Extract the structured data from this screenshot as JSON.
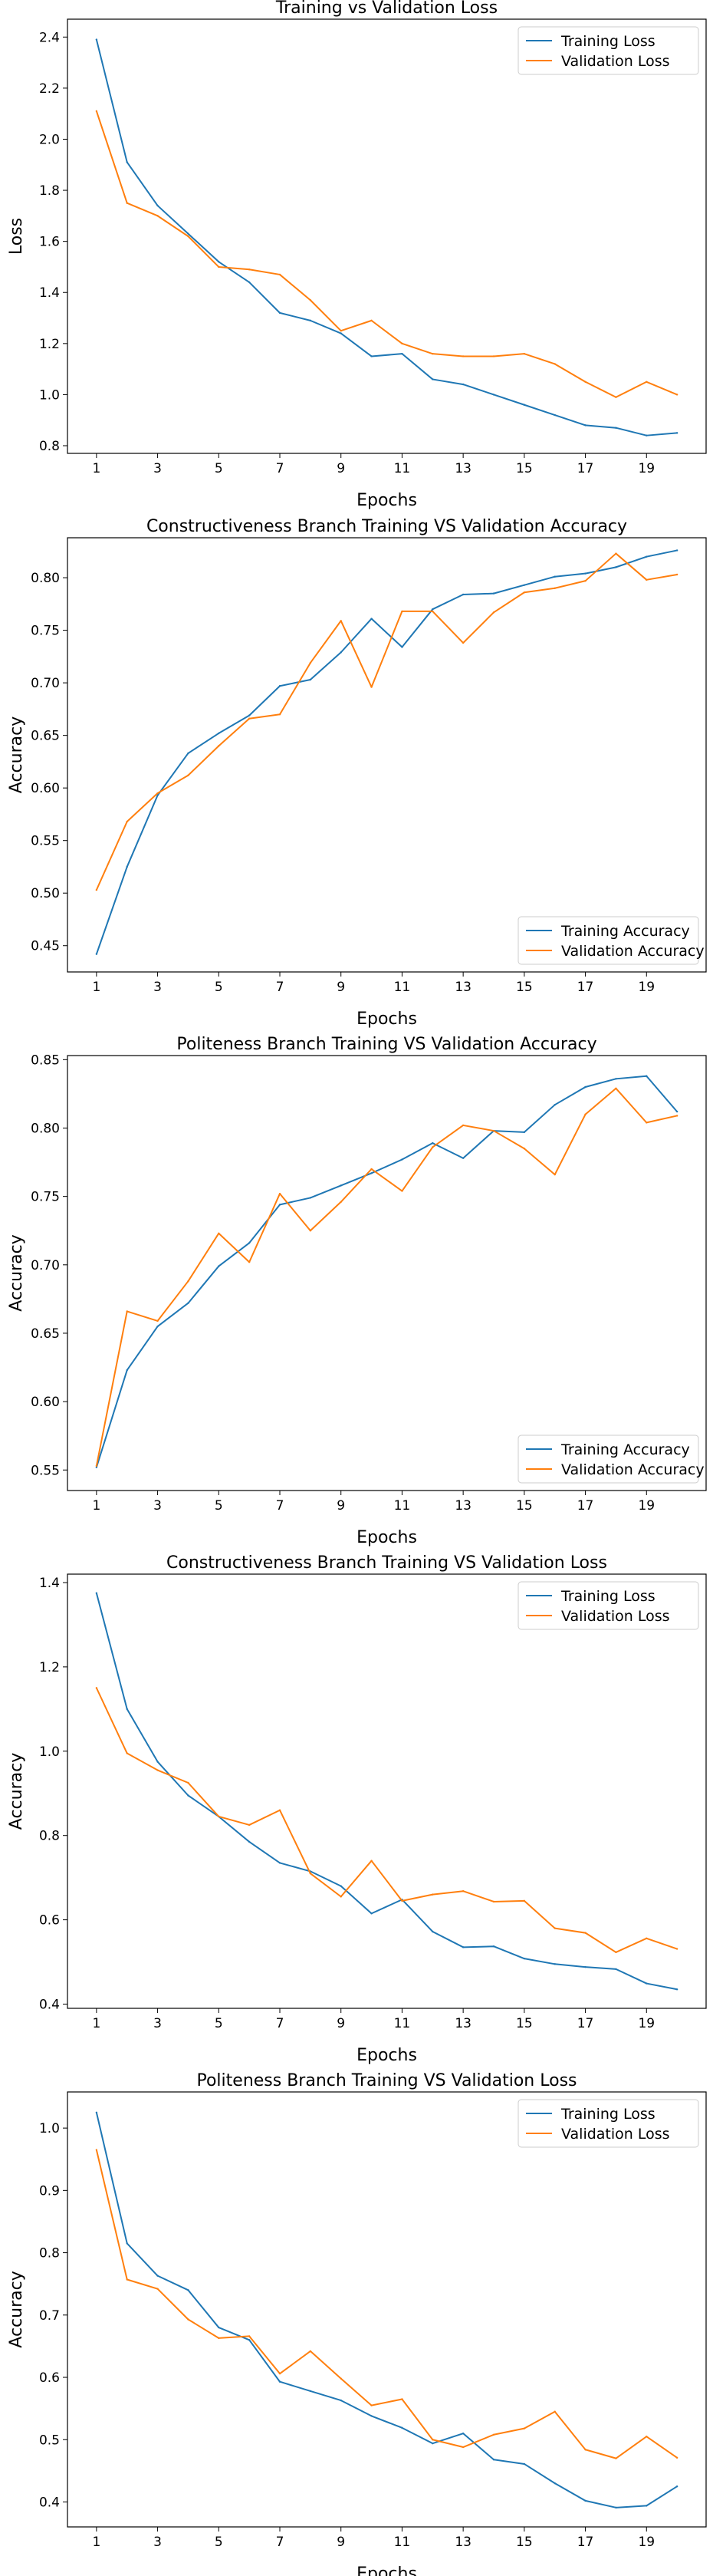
{
  "colors": {
    "training": "#1f77b4",
    "validation": "#ff7f0e",
    "axes": "#000000",
    "legend_border": "#cccccc"
  },
  "chart_data": [
    {
      "type": "line",
      "title": "Training vs Validation Loss",
      "xlabel": "Epochs",
      "ylabel": "Loss",
      "x": [
        1,
        2,
        3,
        4,
        5,
        6,
        7,
        8,
        9,
        10,
        11,
        12,
        13,
        14,
        15,
        16,
        17,
        18,
        19,
        20
      ],
      "xticks": [
        1,
        3,
        5,
        7,
        9,
        11,
        13,
        15,
        17,
        19
      ],
      "yticks": [
        0.8,
        1.0,
        1.2,
        1.4,
        1.6,
        1.8,
        2.0,
        2.2,
        2.4
      ],
      "ylim": [
        0.77,
        2.47
      ],
      "legend_position": "top-right",
      "grid": false,
      "series": [
        {
          "name": "Training Loss",
          "values": [
            2.39,
            1.91,
            1.74,
            1.63,
            1.52,
            1.44,
            1.32,
            1.29,
            1.24,
            1.15,
            1.16,
            1.06,
            1.04,
            1.0,
            0.96,
            0.92,
            0.88,
            0.87,
            0.84,
            0.85
          ]
        },
        {
          "name": "Validation Loss",
          "values": [
            2.11,
            1.75,
            1.7,
            1.62,
            1.5,
            1.49,
            1.47,
            1.37,
            1.25,
            1.29,
            1.2,
            1.16,
            1.15,
            1.15,
            1.16,
            1.12,
            1.05,
            0.99,
            1.05,
            1.0
          ]
        }
      ]
    },
    {
      "type": "line",
      "title": "Constructiveness Branch Training VS Validation Accuracy",
      "xlabel": "Epochs",
      "ylabel": "Accuracy",
      "x": [
        1,
        2,
        3,
        4,
        5,
        6,
        7,
        8,
        9,
        10,
        11,
        12,
        13,
        14,
        15,
        16,
        17,
        18,
        19,
        20
      ],
      "xticks": [
        1,
        3,
        5,
        7,
        9,
        11,
        13,
        15,
        17,
        19
      ],
      "yticks": [
        0.45,
        0.5,
        0.55,
        0.6,
        0.65,
        0.7,
        0.75,
        0.8
      ],
      "ylim": [
        0.425,
        0.838
      ],
      "legend_position": "bottom-right",
      "grid": false,
      "series": [
        {
          "name": "Training Accuracy",
          "values": [
            0.442,
            0.525,
            0.593,
            0.633,
            0.652,
            0.669,
            0.697,
            0.703,
            0.729,
            0.761,
            0.734,
            0.77,
            0.784,
            0.785,
            0.793,
            0.801,
            0.804,
            0.81,
            0.82,
            0.826
          ]
        },
        {
          "name": "Validation Accuracy",
          "values": [
            0.503,
            0.568,
            0.595,
            0.612,
            0.64,
            0.666,
            0.67,
            0.719,
            0.759,
            0.696,
            0.768,
            0.768,
            0.738,
            0.767,
            0.786,
            0.79,
            0.797,
            0.823,
            0.798,
            0.803
          ]
        }
      ]
    },
    {
      "type": "line",
      "title": "Politeness Branch Training VS Validation Accuracy",
      "xlabel": "Epochs",
      "ylabel": "Accuracy",
      "x": [
        1,
        2,
        3,
        4,
        5,
        6,
        7,
        8,
        9,
        10,
        11,
        12,
        13,
        14,
        15,
        16,
        17,
        18,
        19,
        20
      ],
      "xticks": [
        1,
        3,
        5,
        7,
        9,
        11,
        13,
        15,
        17,
        19
      ],
      "yticks": [
        0.55,
        0.6,
        0.65,
        0.7,
        0.75,
        0.8,
        0.85
      ],
      "ylim": [
        0.535,
        0.853
      ],
      "legend_position": "bottom-right",
      "grid": false,
      "series": [
        {
          "name": "Training Accuracy",
          "values": [
            0.552,
            0.623,
            0.655,
            0.672,
            0.699,
            0.716,
            0.744,
            0.749,
            0.758,
            0.767,
            0.777,
            0.789,
            0.778,
            0.798,
            0.797,
            0.817,
            0.83,
            0.836,
            0.838,
            0.812
          ]
        },
        {
          "name": "Validation Accuracy",
          "values": [
            0.553,
            0.666,
            0.659,
            0.688,
            0.723,
            0.702,
            0.752,
            0.725,
            0.746,
            0.77,
            0.754,
            0.786,
            0.802,
            0.798,
            0.785,
            0.766,
            0.81,
            0.829,
            0.804,
            0.809
          ]
        }
      ]
    },
    {
      "type": "line",
      "title": "Constructiveness Branch Training VS Validation Loss",
      "xlabel": "Epochs",
      "ylabel": "Accuracy",
      "x": [
        1,
        2,
        3,
        4,
        5,
        6,
        7,
        8,
        9,
        10,
        11,
        12,
        13,
        14,
        15,
        16,
        17,
        18,
        19,
        20
      ],
      "xticks": [
        1,
        3,
        5,
        7,
        9,
        11,
        13,
        15,
        17,
        19
      ],
      "yticks": [
        0.4,
        0.6,
        0.8,
        1.0,
        1.2,
        1.4
      ],
      "ylim": [
        0.39,
        1.42
      ],
      "legend_position": "top-right",
      "grid": false,
      "series": [
        {
          "name": "Training Loss",
          "values": [
            1.375,
            1.1,
            0.975,
            0.895,
            0.845,
            0.785,
            0.735,
            0.715,
            0.68,
            0.615,
            0.648,
            0.572,
            0.535,
            0.537,
            0.508,
            0.495,
            0.488,
            0.483,
            0.449,
            0.435
          ]
        },
        {
          "name": "Validation Loss",
          "values": [
            1.15,
            0.995,
            0.955,
            0.925,
            0.845,
            0.825,
            0.86,
            0.71,
            0.655,
            0.74,
            0.645,
            0.66,
            0.668,
            0.643,
            0.645,
            0.58,
            0.569,
            0.523,
            0.556,
            0.531
          ]
        }
      ]
    },
    {
      "type": "line",
      "title": "Politeness Branch Training VS Validation Loss",
      "xlabel": "Epochs",
      "ylabel": "Accuracy",
      "x": [
        1,
        2,
        3,
        4,
        5,
        6,
        7,
        8,
        9,
        10,
        11,
        12,
        13,
        14,
        15,
        16,
        17,
        18,
        19,
        20
      ],
      "xticks": [
        1,
        3,
        5,
        7,
        9,
        11,
        13,
        15,
        17,
        19
      ],
      "yticks": [
        0.4,
        0.5,
        0.6,
        0.7,
        0.8,
        0.9,
        1.0
      ],
      "ylim": [
        0.36,
        1.058
      ],
      "legend_position": "top-right",
      "grid": false,
      "series": [
        {
          "name": "Training Loss",
          "values": [
            1.025,
            0.815,
            0.763,
            0.74,
            0.68,
            0.66,
            0.593,
            0.578,
            0.563,
            0.538,
            0.519,
            0.494,
            0.51,
            0.468,
            0.461,
            0.43,
            0.402,
            0.391,
            0.394,
            0.425
          ]
        },
        {
          "name": "Validation Loss",
          "values": [
            0.965,
            0.757,
            0.742,
            0.693,
            0.663,
            0.666,
            0.606,
            0.642,
            0.598,
            0.555,
            0.565,
            0.5,
            0.488,
            0.508,
            0.518,
            0.545,
            0.484,
            0.47,
            0.505,
            0.471
          ]
        }
      ]
    }
  ]
}
